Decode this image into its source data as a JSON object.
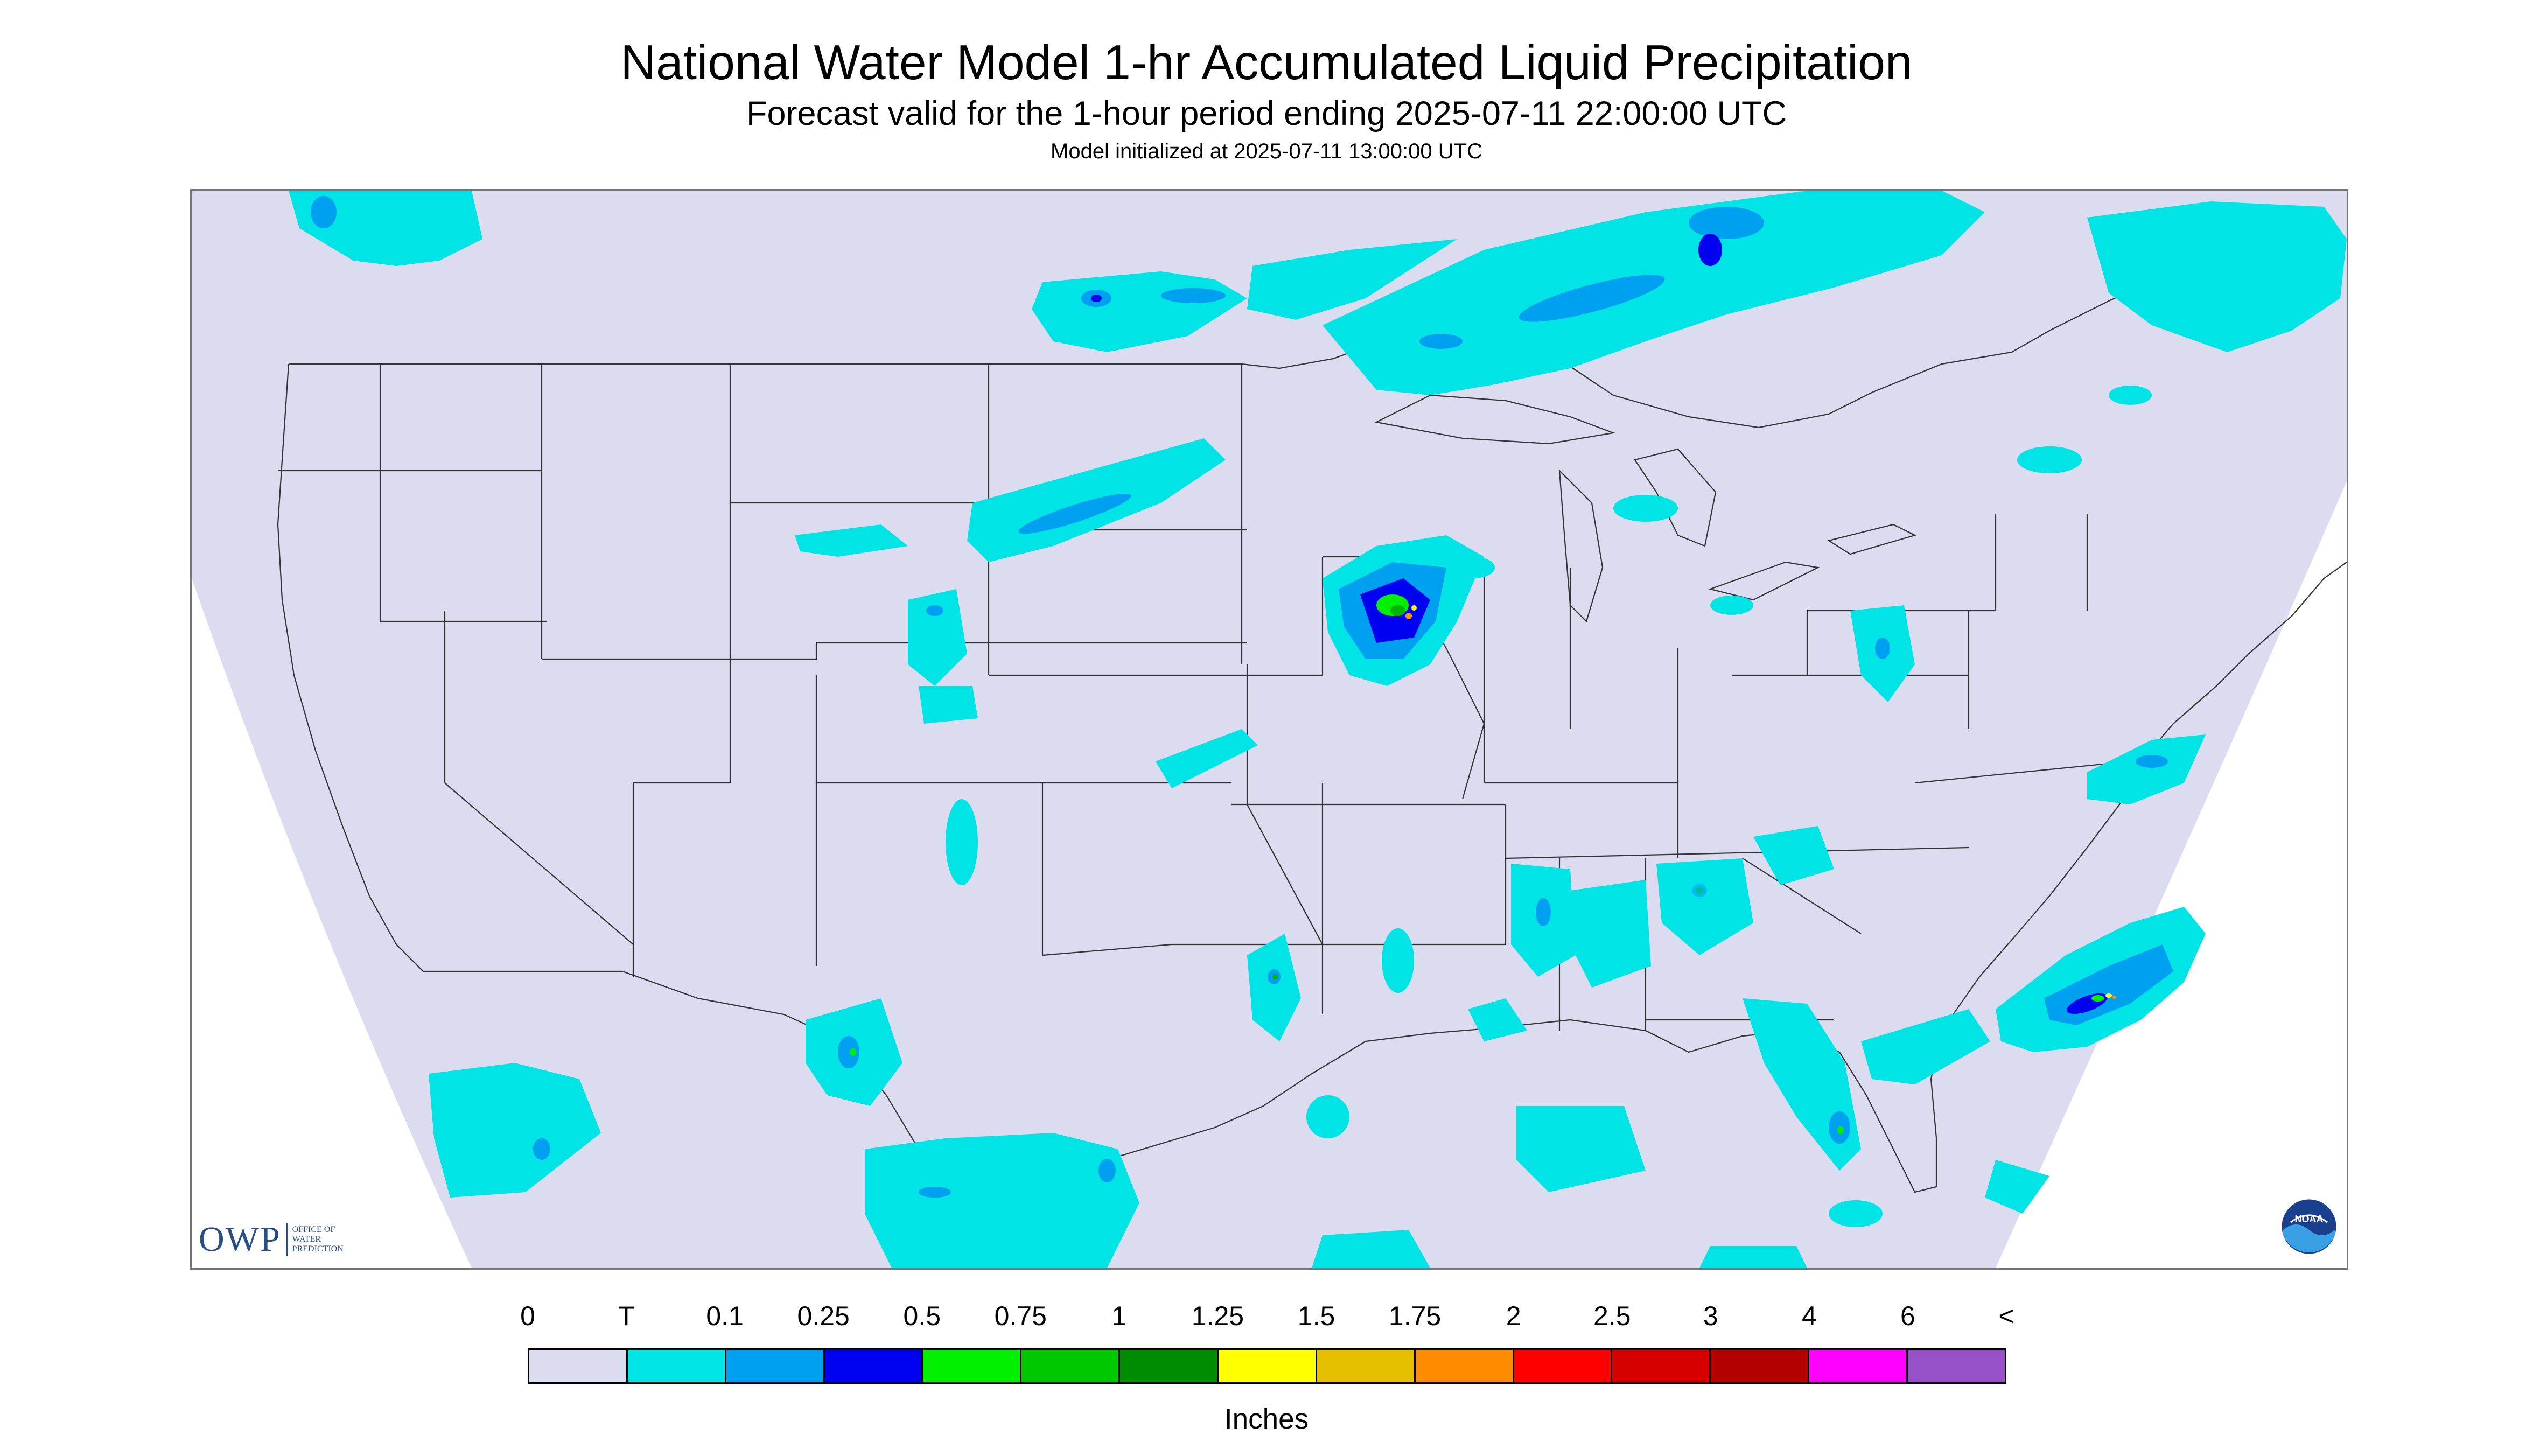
{
  "header": {
    "title": "National Water Model 1-hr Accumulated Liquid Precipitation",
    "subtitle": "Forecast valid for the 1-hour period ending 2025-07-11 22:00:00 UTC",
    "init_line": "Model initialized at 2025-07-11 13:00:00 UTC"
  },
  "logos": {
    "owp_text": "OWP",
    "owp_sub": "OFFICE OF WATER PREDICTION",
    "noaa_text": "NOAA"
  },
  "map": {
    "background_color": "#dcdcf0",
    "outside_color": "#ffffff",
    "boundary_color": "#333333",
    "precip_colors": {
      "trace": "#00e4e6",
      "light": "#00a0f0",
      "moderate": "#0000f0",
      "green": "#00f000",
      "dark_green": "#00b400",
      "yellow": "#ffff00",
      "orange": "#ff8c00"
    }
  },
  "legend": {
    "labels": [
      "0",
      "T",
      "0.1",
      "0.25",
      "0.5",
      "0.75",
      "1",
      "1.25",
      "1.5",
      "1.75",
      "2",
      "2.5",
      "3",
      "4",
      "6",
      "<"
    ],
    "colors": [
      "#dcdcf0",
      "#00e4e6",
      "#00a0f0",
      "#0000f0",
      "#00f000",
      "#00c800",
      "#008c00",
      "#ffff00",
      "#e6be00",
      "#ff8c00",
      "#ff0000",
      "#d70000",
      "#b40000",
      "#ff00ff",
      "#9650c8"
    ],
    "units": "Inches"
  }
}
